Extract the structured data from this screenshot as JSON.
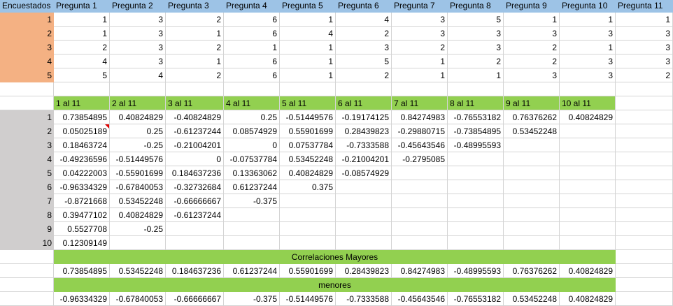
{
  "survey": {
    "corner": "Encuestados",
    "headers": [
      "Pregunta 1",
      "Pregunta 2",
      "Pregunta 3",
      "Pregunta 4",
      "Pregunta 5",
      "Pregunta 6",
      "Pregunta 7",
      "Pregunta 8",
      "Pregunta 9",
      "Pregunta 10",
      "Pregunta 11"
    ],
    "rows": [
      {
        "id": "1",
        "values": [
          "1",
          "3",
          "2",
          "6",
          "1",
          "4",
          "3",
          "5",
          "1",
          "1",
          "1"
        ]
      },
      {
        "id": "2",
        "values": [
          "1",
          "3",
          "1",
          "6",
          "4",
          "2",
          "3",
          "3",
          "3",
          "3",
          "3"
        ]
      },
      {
        "id": "3",
        "values": [
          "2",
          "3",
          "2",
          "1",
          "1",
          "3",
          "2",
          "3",
          "2",
          "1",
          "3"
        ]
      },
      {
        "id": "4",
        "values": [
          "4",
          "3",
          "1",
          "6",
          "1",
          "5",
          "1",
          "2",
          "2",
          "3",
          "3"
        ]
      },
      {
        "id": "5",
        "values": [
          "5",
          "4",
          "2",
          "6",
          "1",
          "2",
          "1",
          "1",
          "3",
          "3",
          "2"
        ]
      }
    ]
  },
  "correlations": {
    "headers": [
      "1 al 11",
      "2 al 11",
      "3 al 11",
      "4 al 11",
      "5 al 11",
      "6 al 11",
      "7 al 11",
      "8 al 11",
      "9 al 11",
      "10 al 11"
    ],
    "rows": [
      {
        "id": "1",
        "values": [
          "0.73854895",
          "0.40824829",
          "-0.40824829",
          "0.25",
          "-0.51449576",
          "-0.19174125",
          "0.84274983",
          "-0.76553182",
          "0.76376262",
          "0.40824829"
        ]
      },
      {
        "id": "2",
        "values": [
          "0.05025189",
          "0.25",
          "-0.61237244",
          "0.08574929",
          "0.55901699",
          "0.28439823",
          "-0.29880715",
          "-0.73854895",
          "0.53452248",
          ""
        ]
      },
      {
        "id": "3",
        "values": [
          "0.18463724",
          "-0.25",
          "-0.21004201",
          "0",
          "0.07537784",
          "-0.7333588",
          "-0.45643546",
          "-0.48995593",
          "",
          ""
        ]
      },
      {
        "id": "4",
        "values": [
          "-0.49236596",
          "-0.51449576",
          "0",
          "-0.07537784",
          "0.53452248",
          "-0.21004201",
          "-0.2795085",
          "",
          "",
          ""
        ]
      },
      {
        "id": "5",
        "values": [
          "0.04222003",
          "-0.55901699",
          "0.184637236",
          "0.13363062",
          "0.40824829",
          "-0.08574929",
          "",
          "",
          "",
          ""
        ]
      },
      {
        "id": "6",
        "values": [
          "-0.96334329",
          "-0.67840053",
          "-0.32732684",
          "0.61237244",
          "0.375",
          "",
          "",
          "",
          "",
          ""
        ]
      },
      {
        "id": "7",
        "values": [
          "-0.8721668",
          "0.53452248",
          "-0.66666667",
          "-0.375",
          "",
          "",
          "",
          "",
          "",
          ""
        ]
      },
      {
        "id": "8",
        "values": [
          "0.39477102",
          "0.40824829",
          "-0.61237244",
          "",
          "",
          "",
          "",
          "",
          "",
          ""
        ]
      },
      {
        "id": "9",
        "values": [
          "0.5527708",
          "-0.25",
          "",
          "",
          "",
          "",
          "",
          "",
          "",
          ""
        ]
      },
      {
        "id": "10",
        "values": [
          "0.12309149",
          "",
          "",
          "",
          "",
          "",
          "",
          "",
          "",
          ""
        ]
      }
    ]
  },
  "mayores": {
    "title": "Correlaciones Mayores",
    "values": [
      "0.73854895",
      "0.53452248",
      "0.184637236",
      "0.61237244",
      "0.55901699",
      "0.28439823",
      "0.84274983",
      "-0.48995593",
      "0.76376262",
      "0.40824829"
    ]
  },
  "menores": {
    "title": "menores",
    "values": [
      "-0.96334329",
      "-0.67840053",
      "-0.66666667",
      "-0.375",
      "-0.51449576",
      "-0.7333588",
      "-0.45643546",
      "-0.76553182",
      "0.53452248",
      "0.40824829"
    ]
  },
  "colors": {
    "header_blue": "#9dc3e6",
    "respondent_orange": "#f4b183",
    "corr_green": "#92d050",
    "index_gray": "#d0cece",
    "comment_flag": "#e00000"
  }
}
